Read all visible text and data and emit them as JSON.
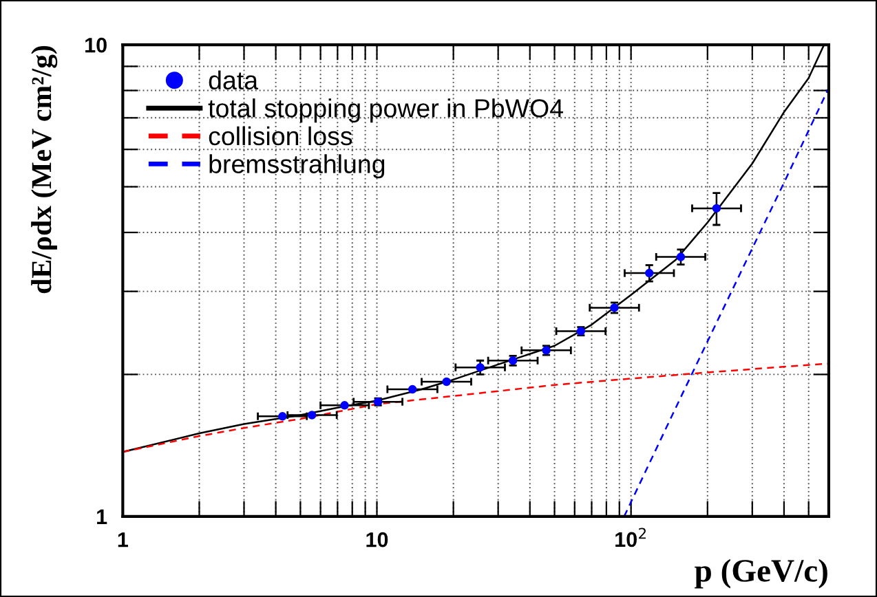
{
  "chart_data": {
    "type": "line",
    "xlabel": "p (GeV/c)",
    "ylabel": "dE/ρdx (MeV cm²/g)",
    "log": "xy",
    "grid": true,
    "legend": "top left",
    "xlim": [
      1,
      600
    ],
    "ylim": [
      1,
      10
    ],
    "xticks": [
      1,
      {
        "value": 2,
        "label": null
      },
      {
        "value": 3,
        "label": null
      },
      {
        "value": 4,
        "label": null
      },
      {
        "value": 5,
        "label": null
      },
      {
        "value": 6,
        "label": null
      },
      {
        "value": 7,
        "label": null
      },
      {
        "value": 8,
        "label": null
      },
      {
        "value": 9,
        "label": null
      },
      10,
      {
        "value": 20,
        "label": null
      },
      {
        "value": 30,
        "label": null
      },
      {
        "value": 40,
        "label": null
      },
      {
        "value": 50,
        "label": null
      },
      {
        "value": 60,
        "label": null
      },
      {
        "value": 70,
        "label": null
      },
      {
        "value": 80,
        "label": null
      },
      {
        "value": 90,
        "label": null
      },
      {
        "value": 100,
        "label": "10$^{2}$"
      },
      {
        "value": 200,
        "label": null
      },
      {
        "value": 300,
        "label": null
      },
      {
        "value": 400,
        "label": null
      },
      {
        "value": 500,
        "label": null
      }
    ],
    "yticks": [
      1,
      {
        "value": 2,
        "label": null
      },
      {
        "value": 3,
        "label": null
      },
      {
        "value": 4,
        "label": null
      },
      {
        "value": 5,
        "label": null
      },
      {
        "value": 6,
        "label": null
      },
      {
        "value": 7,
        "label": null
      },
      {
        "value": 8,
        "label": null
      },
      {
        "value": 9,
        "label": null
      },
      10
    ],
    "series": [
      {
        "name": "data",
        "type": "scatter",
        "color": "#0000ff",
        "marker": "circle",
        "x": [
          4.25,
          5.55,
          7.46,
          10.1,
          13.8,
          18.8,
          25.5,
          34.3,
          46.4,
          63.5,
          86,
          118,
          157,
          217
        ],
        "values": [
          1.63,
          1.64,
          1.72,
          1.75,
          1.86,
          1.93,
          2.07,
          2.14,
          2.25,
          2.47,
          2.77,
          3.28,
          3.55,
          4.5
        ],
        "xerrors": [
          [
            3.4,
            5.3
          ],
          [
            4.45,
            6.95
          ],
          [
            6.0,
            9.3
          ],
          [
            8.1,
            12.6
          ],
          [
            11.0,
            17.3
          ],
          [
            15.0,
            23.5
          ],
          [
            20.4,
            31.9
          ],
          [
            27.4,
            42.9
          ],
          [
            37.1,
            58
          ],
          [
            50.8,
            79.4
          ],
          [
            68.8,
            107.5
          ],
          [
            94.4,
            147.5
          ],
          [
            125.6,
            196
          ],
          [
            174,
            271
          ]
        ],
        "errors": [
          null,
          null,
          null,
          0.03,
          null,
          null,
          0.07,
          0.05,
          0.05,
          0.05,
          0.07,
          0.13,
          0.13,
          0.35
        ]
      },
      {
        "name": "total stopping power in PbWO4",
        "color": "#000000",
        "line_style": "solid",
        "x": [
          1,
          2,
          3,
          5,
          7,
          10,
          15,
          20,
          30,
          50,
          70,
          100,
          150,
          200,
          300,
          400,
          500,
          575
        ],
        "values": [
          1.37,
          1.5,
          1.57,
          1.64,
          1.7,
          1.76,
          1.86,
          1.95,
          2.1,
          2.3,
          2.55,
          2.95,
          3.5,
          4.2,
          5.6,
          7.2,
          8.5,
          10
        ]
      },
      {
        "name": "collision loss",
        "color": "#ff0000",
        "line_style": "dashed",
        "x": [
          1,
          2,
          3,
          5,
          10,
          20,
          50,
          100,
          200,
          600
        ],
        "values": [
          1.37,
          1.48,
          1.54,
          1.61,
          1.73,
          1.8,
          1.9,
          1.96,
          2.02,
          2.11
        ]
      },
      {
        "name": "bremsstrahlung",
        "color": "#0000ff",
        "line_style": "dashed",
        "x": [
          94,
          150,
          200,
          300,
          400,
          600
        ],
        "values": [
          1,
          1.7,
          2.35,
          3.7,
          5.1,
          8.1
        ]
      }
    ]
  }
}
